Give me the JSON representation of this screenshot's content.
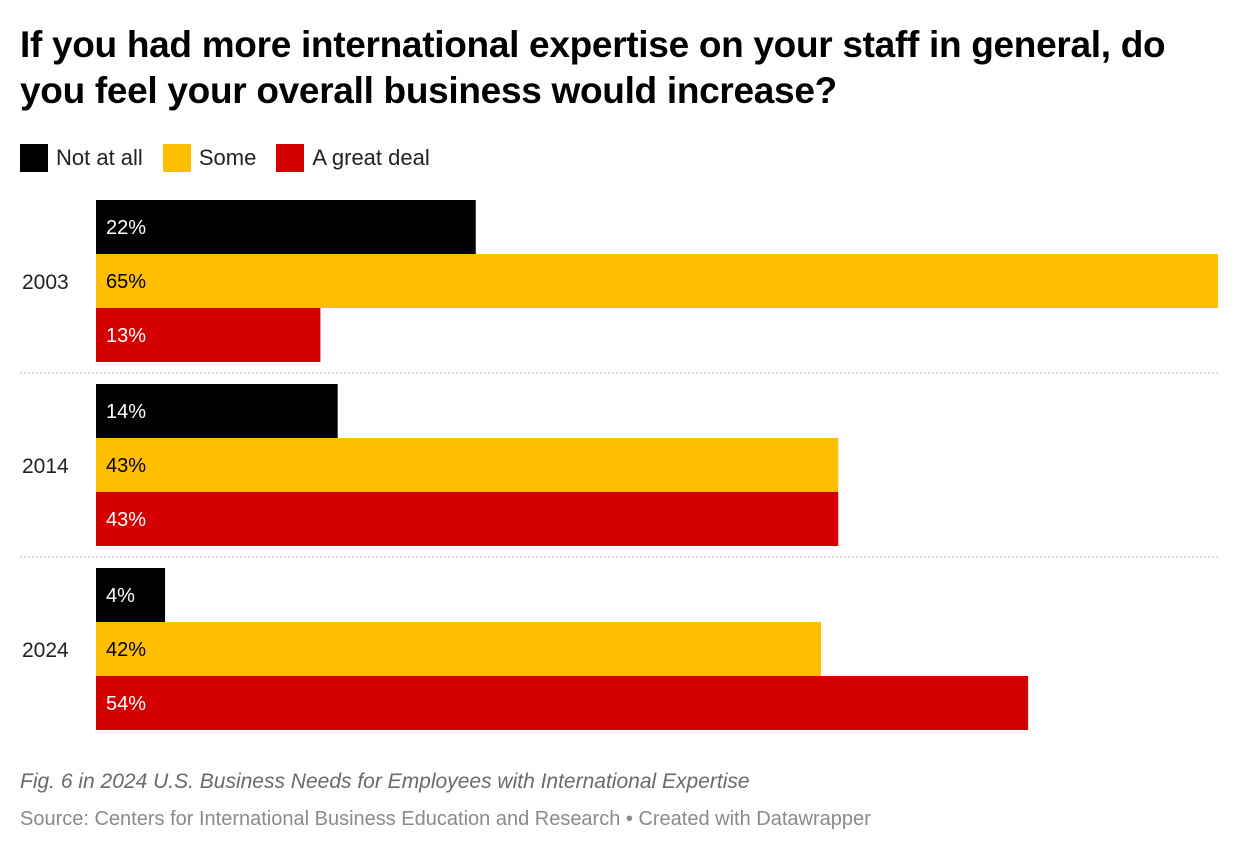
{
  "chart_data": {
    "type": "bar",
    "orientation": "horizontal",
    "title": "If you had more international expertise on your staff in general, do you feel your overall business would increase?",
    "categories": [
      "2003",
      "2014",
      "2024"
    ],
    "series": [
      {
        "name": "Not at all",
        "color": "#000000",
        "label_color": "#ffffff",
        "values": [
          22,
          14,
          4
        ]
      },
      {
        "name": "Some",
        "color": "#ffbf00",
        "label_color": "#000000",
        "values": [
          65,
          43,
          42
        ]
      },
      {
        "name": "A great deal",
        "color": "#d40000",
        "label_color": "#ffffff",
        "values": [
          13,
          43,
          54
        ]
      }
    ],
    "value_suffix": "%",
    "xlim": [
      0,
      65
    ],
    "grid": false,
    "legend": "top-left",
    "note": "Fig. 6 in 2024 U.S. Business Needs for Employees with International Expertise",
    "source": "Source: Centers for International Business Education and Research • Created with Datawrapper"
  }
}
